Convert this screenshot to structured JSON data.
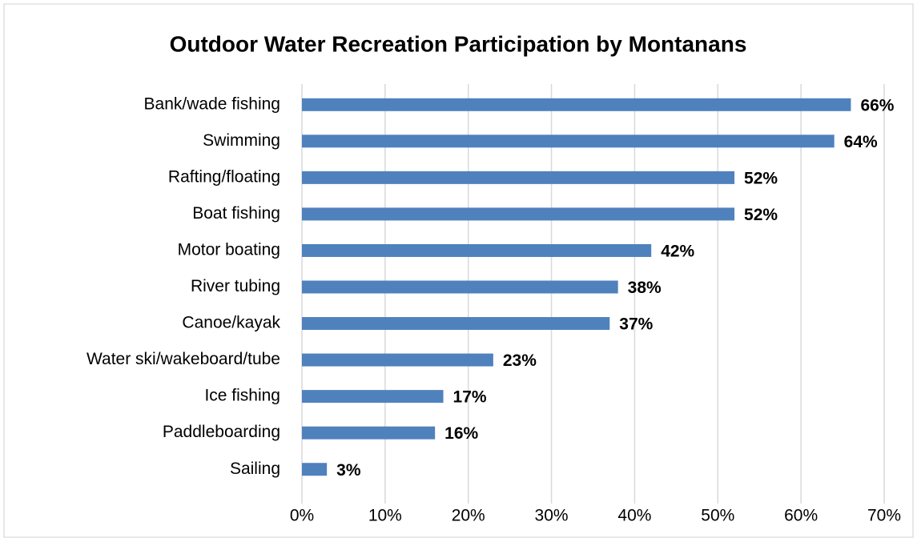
{
  "chart_data": {
    "type": "barh",
    "title": "Outdoor Water Recreation Participation by Montanans",
    "categories": [
      "Bank/wade fishing",
      "Swimming",
      "Rafting/floating",
      "Boat fishing",
      "Motor boating",
      "River tubing",
      "Canoe/kayak",
      "Water ski/wakeboard/tube",
      "Ice fishing",
      "Paddleboarding",
      "Sailing"
    ],
    "values": [
      66,
      64,
      52,
      52,
      42,
      38,
      37,
      23,
      17,
      16,
      3
    ],
    "value_labels": [
      "66%",
      "64%",
      "52%",
      "52%",
      "42%",
      "38%",
      "37%",
      "23%",
      "17%",
      "16%",
      "3%"
    ],
    "color": "#4f81bd",
    "xlim": [
      0,
      70
    ],
    "xticks": [
      {
        "value": 0,
        "label": "0%"
      },
      {
        "value": 10,
        "label": "10%"
      },
      {
        "value": 20,
        "label": "20%"
      },
      {
        "value": 30,
        "label": "30%"
      },
      {
        "value": 40,
        "label": "40%"
      },
      {
        "value": 50,
        "label": "50%"
      },
      {
        "value": 60,
        "label": "60%"
      },
      {
        "value": 70,
        "label": "70%"
      }
    ],
    "grid": true
  }
}
